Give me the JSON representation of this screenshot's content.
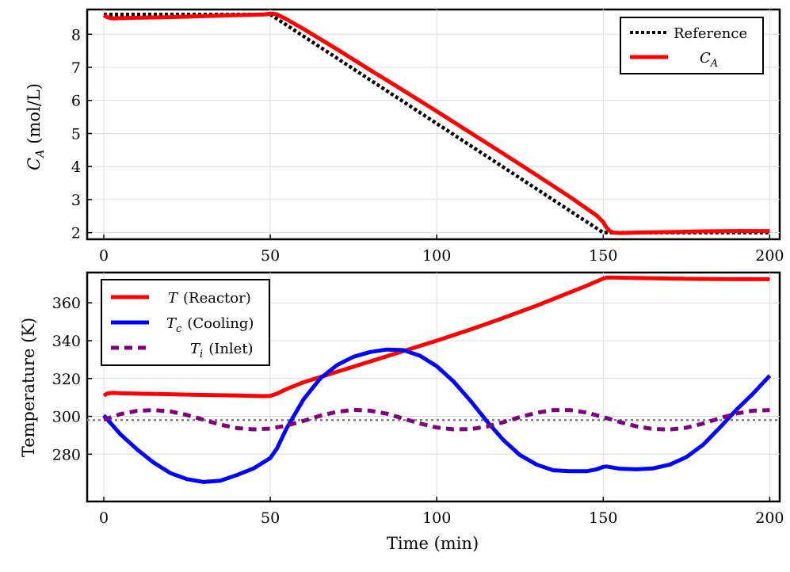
{
  "chart_data": [
    {
      "type": "line",
      "ylabel_symbol": "C",
      "ylabel_sub": "A",
      "ylabel_unit": "(mol/L)",
      "xlabel": "",
      "xlim": [
        -5,
        203
      ],
      "ylim": [
        1.8,
        8.75
      ],
      "xticks": [
        0,
        50,
        100,
        150,
        200
      ],
      "yticks": [
        2,
        3,
        4,
        5,
        6,
        7,
        8
      ],
      "grid": true,
      "legend_position": "top-right",
      "series": [
        {
          "name": "Reference",
          "legend_label": "Reference",
          "color": "#000000",
          "dash": "dotted",
          "x": [
            0,
            50,
            150,
            200
          ],
          "y": [
            8.6,
            8.6,
            2.0,
            2.0
          ]
        },
        {
          "name": "C_A",
          "legend_symbol": "C",
          "legend_sub": "A",
          "color": "#ff0000",
          "dash": "solid",
          "x": [
            0,
            1,
            2,
            3,
            5,
            10,
            20,
            30,
            40,
            48,
            50,
            51,
            52,
            53,
            55,
            60,
            70,
            80,
            90,
            100,
            110,
            120,
            130,
            140,
            148,
            150,
            151,
            152,
            153,
            155,
            160,
            170,
            180,
            190,
            200
          ],
          "y": [
            8.58,
            8.52,
            8.49,
            8.48,
            8.49,
            8.5,
            8.52,
            8.55,
            8.58,
            8.6,
            8.62,
            8.62,
            8.6,
            8.55,
            8.45,
            8.16,
            7.55,
            6.92,
            6.3,
            5.67,
            5.03,
            4.39,
            3.74,
            3.08,
            2.52,
            2.32,
            2.15,
            2.05,
            2.0,
            1.99,
            2.0,
            2.02,
            2.04,
            2.05,
            2.05
          ]
        }
      ]
    },
    {
      "type": "line",
      "ylabel": "Temperature (K)",
      "xlabel": "Time (min)",
      "xlim": [
        -5,
        203
      ],
      "ylim": [
        255,
        376
      ],
      "xticks": [
        0,
        50,
        100,
        150,
        200
      ],
      "yticks": [
        280,
        300,
        320,
        340,
        360
      ],
      "grid": true,
      "legend_position": "top-left",
      "reference_line": {
        "y": 298,
        "color": "#808080",
        "dash": "dotted"
      },
      "series": [
        {
          "name": "T (Reactor)",
          "legend_symbol": "T",
          "legend_sub": "",
          "legend_label": "(Reactor)",
          "color": "#ff0000",
          "dash": "solid",
          "x": [
            0,
            1,
            2,
            3,
            5,
            10,
            20,
            30,
            40,
            48,
            50,
            52,
            55,
            60,
            70,
            80,
            90,
            100,
            110,
            120,
            130,
            140,
            145,
            150,
            151,
            152,
            155,
            160,
            170,
            180,
            190,
            200
          ],
          "y": [
            311,
            312,
            312.3,
            312.4,
            312.2,
            312,
            311.7,
            311.3,
            311,
            310.7,
            310.8,
            312,
            314.5,
            318,
            323.5,
            329,
            334.5,
            340,
            345.8,
            352,
            358.5,
            365.5,
            369,
            372.8,
            373.3,
            373.4,
            373.3,
            373.1,
            372.8,
            372.6,
            372.5,
            372.5
          ]
        },
        {
          "name": "T_c (Cooling)",
          "legend_symbol": "T",
          "legend_sub": "c",
          "legend_label": "(Cooling)",
          "color": "#0000ff",
          "dash": "solid",
          "x": [
            0,
            5,
            10,
            15,
            20,
            25,
            30,
            35,
            40,
            45,
            50,
            52,
            55,
            60,
            65,
            70,
            75,
            80,
            85,
            90,
            95,
            100,
            105,
            110,
            115,
            120,
            125,
            130,
            135,
            140,
            145,
            148,
            150,
            151,
            152,
            155,
            160,
            165,
            170,
            175,
            180,
            185,
            190,
            195,
            200
          ],
          "y": [
            300.5,
            290.5,
            282.5,
            275.5,
            270,
            266.8,
            265.3,
            266,
            269,
            272.5,
            278,
            283,
            294,
            309,
            320,
            327,
            331.5,
            334,
            335.3,
            335,
            332,
            326.5,
            318.5,
            308.5,
            297.5,
            287.5,
            279.5,
            274.5,
            271.5,
            271,
            271,
            272,
            273.3,
            273.5,
            273.2,
            272.3,
            272,
            272.5,
            274.5,
            278.5,
            285,
            294,
            303.5,
            312,
            321.5
          ]
        },
        {
          "name": "T_i (Inlet)",
          "legend_symbol": "T",
          "legend_sub": "i",
          "legend_label": "(Inlet)",
          "color": "#800080",
          "dash": "dashed",
          "x": [
            0,
            5,
            10,
            15,
            20,
            25,
            30,
            35,
            40,
            45,
            50,
            55,
            60,
            65,
            70,
            75,
            80,
            85,
            90,
            95,
            100,
            105,
            110,
            115,
            120,
            125,
            130,
            135,
            140,
            145,
            150,
            155,
            160,
            165,
            170,
            175,
            180,
            185,
            190,
            195,
            200
          ],
          "y": [
            298.2,
            301.2,
            302.9,
            303.3,
            302.6,
            300.7,
            298.2,
            295.6,
            293.8,
            293.1,
            293.5,
            295.2,
            297.6,
            300.3,
            302.4,
            303.4,
            303,
            301.4,
            298.8,
            296.2,
            294.1,
            293.1,
            293.2,
            294.6,
            296.9,
            299.6,
            301.9,
            303.3,
            303.3,
            302,
            299.6,
            297,
            294.7,
            293.3,
            293,
            294,
            296.2,
            299,
            301.5,
            303,
            303.3
          ]
        }
      ]
    }
  ]
}
